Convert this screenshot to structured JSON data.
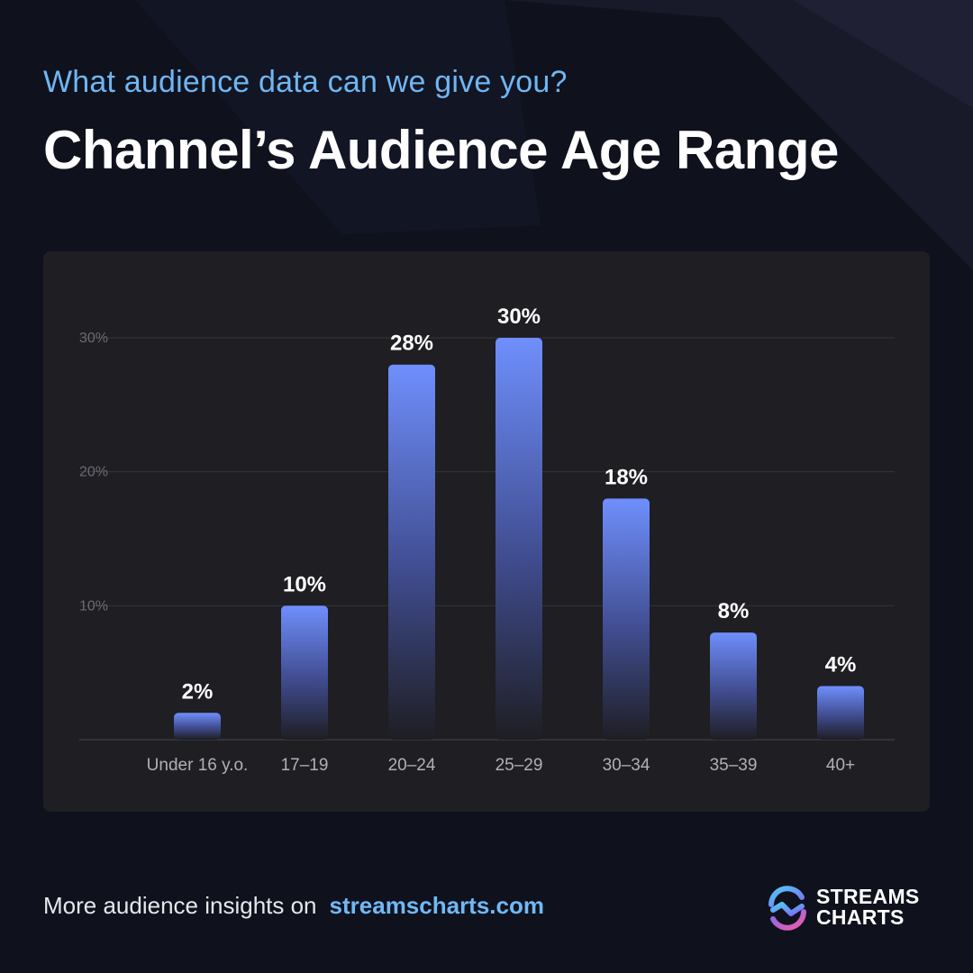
{
  "header": {
    "subtitle": "What audience data can we give you?",
    "title": "Channel’s Audience Age Range"
  },
  "chart_data": {
    "type": "bar",
    "categories": [
      "Under 16 y.o.",
      "17–19",
      "20–24",
      "25–29",
      "30–34",
      "35–39",
      "40+"
    ],
    "values": [
      2,
      10,
      28,
      30,
      18,
      8,
      4
    ],
    "data_labels": [
      "2%",
      "10%",
      "28%",
      "30%",
      "18%",
      "8%",
      "4%"
    ],
    "yticks": [
      10,
      20,
      30
    ],
    "ytick_labels": [
      "10%",
      "20%",
      "30%"
    ],
    "ylim": [
      0,
      30
    ],
    "grid": true,
    "legend": "none",
    "colors": {
      "bar_top": "#6f8ffc",
      "bar_bottom": "#1e1e23",
      "grid": "#34343b",
      "panel": "#1e1e23"
    }
  },
  "footer": {
    "text": "More audience insights on",
    "link": "streamscharts.com"
  },
  "logo": {
    "line1": "STREAMS",
    "line2": "CHARTS",
    "icon": "streams-charts-logo-icon"
  }
}
